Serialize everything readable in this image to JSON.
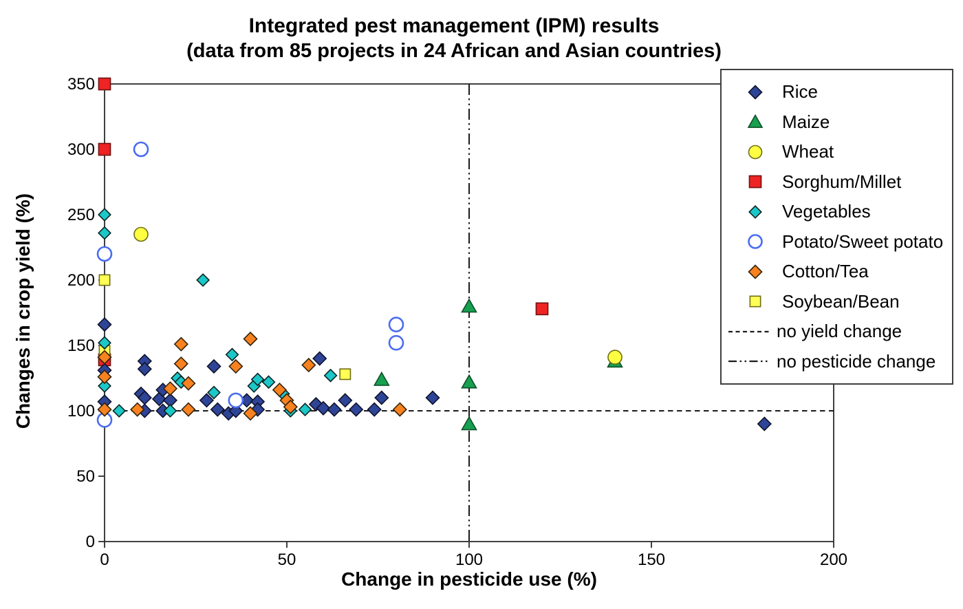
{
  "chart_data": {
    "type": "scatter",
    "title": "Integrated pest management (IPM) results",
    "subtitle": "(data from 85 projects in 24 African and Asian countries)",
    "xlabel": "Change in pesticide use (%)",
    "ylabel": "Changes in crop yield (%)",
    "xlim": [
      0,
      200
    ],
    "ylim": [
      0,
      350
    ],
    "x_ticks": [
      0,
      50,
      100,
      150,
      200
    ],
    "y_ticks": [
      0,
      50,
      100,
      150,
      200,
      250,
      300,
      350
    ],
    "grid": false,
    "legend_position": "top-right",
    "series": [
      {
        "name": "Rice",
        "marker": "diamond",
        "color": "#2e4496",
        "edge": "#10122a",
        "points": [
          [
            0,
            166
          ],
          [
            0,
            131
          ],
          [
            0,
            107
          ],
          [
            10,
            113
          ],
          [
            11,
            138
          ],
          [
            11,
            132
          ],
          [
            11,
            110
          ],
          [
            11,
            100
          ],
          [
            15,
            109
          ],
          [
            16,
            116
          ],
          [
            16,
            100
          ],
          [
            18,
            108
          ],
          [
            28,
            108
          ],
          [
            30,
            134
          ],
          [
            31,
            101
          ],
          [
            34,
            98
          ],
          [
            36,
            100
          ],
          [
            39,
            108
          ],
          [
            42,
            107
          ],
          [
            42,
            101
          ],
          [
            58,
            105
          ],
          [
            59,
            140
          ],
          [
            60,
            102
          ],
          [
            63,
            101
          ],
          [
            66,
            108
          ],
          [
            69,
            101
          ],
          [
            74,
            101
          ],
          [
            76,
            110
          ],
          [
            90,
            110
          ],
          [
            181,
            90
          ]
        ]
      },
      {
        "name": "Maize",
        "marker": "triangle",
        "color": "#17a050",
        "edge": "#0d4f26",
        "points": [
          [
            76,
            124
          ],
          [
            100,
            180
          ],
          [
            100,
            122
          ],
          [
            100,
            90
          ],
          [
            140,
            138
          ]
        ]
      },
      {
        "name": "Wheat",
        "marker": "circle",
        "color": "#ffff42",
        "edge": "#6e6e14",
        "points": [
          [
            10,
            235
          ],
          [
            140,
            141
          ]
        ]
      },
      {
        "name": "Sorghum/Millet",
        "marker": "square",
        "color": "#ee2424",
        "edge": "#701111",
        "points": [
          [
            0,
            350
          ],
          [
            0,
            300
          ],
          [
            0,
            139
          ],
          [
            120,
            178
          ]
        ]
      },
      {
        "name": "Vegetables",
        "marker": "diamond",
        "color": "#1cc7c7",
        "edge": "#0a2424",
        "points": [
          [
            0,
            250
          ],
          [
            0,
            236
          ],
          [
            0,
            152
          ],
          [
            0,
            119
          ],
          [
            4,
            100
          ],
          [
            18,
            100
          ],
          [
            20,
            125
          ],
          [
            21,
            122
          ],
          [
            27,
            200
          ],
          [
            30,
            114
          ],
          [
            35,
            143
          ],
          [
            41,
            119
          ],
          [
            42,
            124
          ],
          [
            45,
            122
          ],
          [
            49,
            113
          ],
          [
            51,
            100
          ],
          [
            55,
            101
          ],
          [
            62,
            127
          ]
        ]
      },
      {
        "name": "Potato/Sweet potato",
        "marker": "open-circle",
        "color": "#ffffff",
        "edge": "#4a6cf0",
        "points": [
          [
            0,
            220
          ],
          [
            0,
            93
          ],
          [
            10,
            300
          ],
          [
            36,
            108
          ],
          [
            80,
            166
          ],
          [
            80,
            152
          ]
        ]
      },
      {
        "name": "Cotton/Tea",
        "marker": "diamond",
        "color": "#f8821f",
        "edge": "#33230a",
        "points": [
          [
            0,
            141
          ],
          [
            0,
            126
          ],
          [
            0,
            101
          ],
          [
            9,
            101
          ],
          [
            18,
            117
          ],
          [
            21,
            151
          ],
          [
            21,
            136
          ],
          [
            23,
            121
          ],
          [
            23,
            101
          ],
          [
            36,
            134
          ],
          [
            40,
            155
          ],
          [
            40,
            98
          ],
          [
            48,
            116
          ],
          [
            50,
            108
          ],
          [
            51,
            103
          ],
          [
            56,
            135
          ],
          [
            81,
            101
          ]
        ]
      },
      {
        "name": "Soybean/Bean",
        "marker": "square",
        "color": "#ffff55",
        "edge": "#6e6e14",
        "points": [
          [
            0,
            200
          ],
          [
            0,
            146
          ],
          [
            66,
            128
          ]
        ]
      }
    ],
    "draw_order": [
      "Sorghum/Millet",
      "Soybean/Bean",
      "Maize",
      "Wheat",
      "Rice",
      "Vegetables",
      "Potato/Sweet potato",
      "Cotton/Tea"
    ],
    "reference_lines": [
      {
        "label": "no yield change",
        "orientation": "horizontal",
        "value": 100,
        "style": "dashed"
      },
      {
        "label": "no pesticide change",
        "orientation": "vertical",
        "value": 100,
        "style": "dash-dot"
      }
    ],
    "line_color": "#1a1a1a",
    "frame_color": "#2b2b2b"
  }
}
